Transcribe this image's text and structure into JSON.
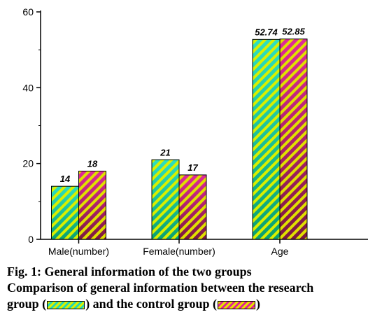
{
  "chart_data": {
    "type": "bar",
    "categories": [
      "Male(number)",
      "Female(number)",
      "Age"
    ],
    "series": [
      {
        "name": "research group",
        "values": [
          14,
          21,
          52.74
        ],
        "labels": [
          "14",
          "21",
          "52.74"
        ]
      },
      {
        "name": "control group",
        "values": [
          18,
          17,
          52.85
        ],
        "labels": [
          "18",
          "17",
          "52.85"
        ]
      }
    ],
    "ylim": [
      0,
      60
    ],
    "yticks": [
      0,
      20,
      40,
      60
    ],
    "xlabel": "",
    "ylabel": "",
    "grid": false,
    "colors": {
      "research_stripe": "#d8f000",
      "research_base_top": "#2ee0c0",
      "research_base_bottom": "#0aa070",
      "control_stripe": "#e0e000",
      "control_base_top": "#e02a9a",
      "control_base_bottom": "#7a1a40"
    }
  },
  "caption": {
    "line1": "Fig. 1: General information of the two groups",
    "line2": "Comparison of general information between the research",
    "line3_prefix": "group (",
    "line3_middle": ") and the control group (",
    "line3_suffix": ")"
  }
}
